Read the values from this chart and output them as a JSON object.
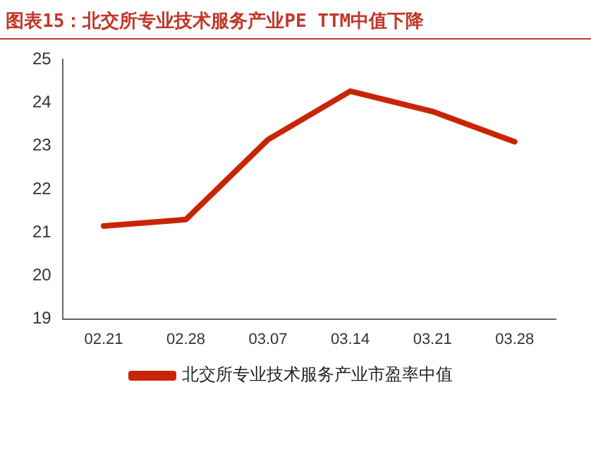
{
  "chart_data": {
    "type": "line",
    "title": "图表15：北交所专业技术服务产业PE TTM中值下降",
    "categories": [
      "02.21",
      "02.28",
      "03.07",
      "03.14",
      "03.21",
      "03.28"
    ],
    "series": [
      {
        "name": "北交所专业技术服务产业市盈率中值",
        "color": "#c82506",
        "values": [
          21.15,
          21.3,
          23.15,
          24.27,
          23.8,
          23.1
        ]
      }
    ],
    "ylim": [
      19,
      25
    ],
    "yticks": [
      19,
      20,
      21,
      22,
      23,
      24,
      25
    ],
    "grid": false,
    "legend": "bottom",
    "marker": "none"
  }
}
